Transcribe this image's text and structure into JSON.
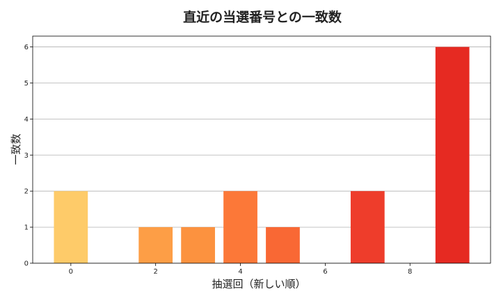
{
  "chart_data": {
    "type": "bar",
    "title": "直近の当選番号との一致数",
    "xlabel": "抽選回（新しい順）",
    "ylabel": "一致数",
    "x": [
      0,
      1,
      2,
      3,
      4,
      5,
      6,
      7,
      8,
      9
    ],
    "values": [
      2,
      0,
      1,
      1,
      2,
      1,
      0,
      2,
      0,
      6
    ],
    "xticks": [
      0,
      2,
      4,
      6,
      8
    ],
    "yticks": [
      0,
      1,
      2,
      3,
      4,
      5,
      6
    ],
    "xlim": [
      -0.9,
      9.9
    ],
    "ylim": [
      0,
      6.3
    ],
    "grid": "horizontal",
    "colors": {
      "gradient": [
        "#fecb69",
        "#fdab4c",
        "#fd9e46",
        "#fc923f",
        "#fc7838",
        "#f96834",
        "#f25530",
        "#ee3d2b",
        "#ea2c25",
        "#e62a22"
      ]
    }
  }
}
